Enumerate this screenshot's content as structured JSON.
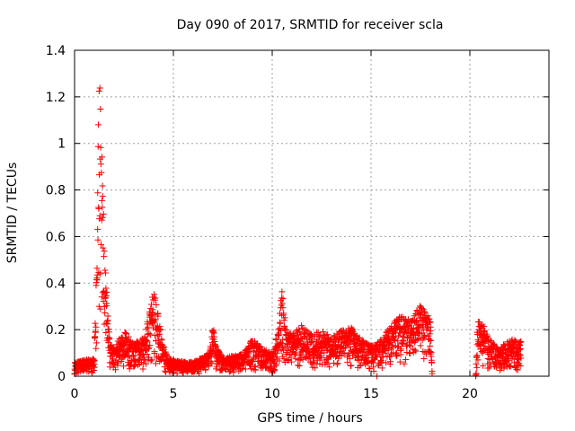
{
  "chart_data": {
    "type": "scatter",
    "title": "Day 090 of 2017, SRMTID for receiver scla",
    "xlabel": "GPS time / hours",
    "ylabel": "SRMTID / TECUs",
    "xlim": [
      0,
      24
    ],
    "ylim": [
      0,
      1.4
    ],
    "xticks": [
      0,
      5,
      10,
      15,
      20
    ],
    "xtick_labels": [
      "0",
      "5",
      "10",
      "15",
      "20"
    ],
    "yticks": [
      0,
      0.2,
      0.4,
      0.6,
      0.8,
      1.0,
      1.2,
      1.4
    ],
    "ytick_labels": [
      "0",
      "0.2",
      "0.4",
      "0.6",
      "0.8",
      "1",
      "1.2",
      "1.4"
    ],
    "grid": true,
    "marker": "plus",
    "color": "#ff0000",
    "series": [
      {
        "name": "SRMTID",
        "description_of_envelope": "approximate upper envelope of scattered points (hour, TECU)",
        "envelope": [
          [
            0.0,
            0.06
          ],
          [
            0.5,
            0.07
          ],
          [
            1.0,
            0.08
          ],
          [
            1.15,
            0.6
          ],
          [
            1.2,
            1.3
          ],
          [
            1.3,
            1.25
          ],
          [
            1.4,
            0.9
          ],
          [
            1.5,
            0.57
          ],
          [
            1.6,
            0.4
          ],
          [
            1.7,
            0.3
          ],
          [
            1.8,
            0.15
          ],
          [
            2.0,
            0.12
          ],
          [
            2.5,
            0.2
          ],
          [
            3.0,
            0.14
          ],
          [
            3.5,
            0.17
          ],
          [
            4.0,
            0.37
          ],
          [
            4.2,
            0.3
          ],
          [
            4.4,
            0.18
          ],
          [
            4.7,
            0.08
          ],
          [
            5.0,
            0.07
          ],
          [
            6.0,
            0.06
          ],
          [
            6.8,
            0.1
          ],
          [
            7.0,
            0.22
          ],
          [
            7.2,
            0.12
          ],
          [
            7.5,
            0.08
          ],
          [
            8.5,
            0.1
          ],
          [
            9.0,
            0.16
          ],
          [
            9.5,
            0.12
          ],
          [
            10.0,
            0.1
          ],
          [
            10.3,
            0.2
          ],
          [
            10.5,
            0.38
          ],
          [
            10.7,
            0.2
          ],
          [
            11.0,
            0.18
          ],
          [
            11.5,
            0.22
          ],
          [
            12.0,
            0.18
          ],
          [
            12.5,
            0.2
          ],
          [
            13.0,
            0.17
          ],
          [
            13.5,
            0.2
          ],
          [
            14.0,
            0.21
          ],
          [
            14.5,
            0.16
          ],
          [
            15.0,
            0.13
          ],
          [
            15.5,
            0.16
          ],
          [
            16.0,
            0.22
          ],
          [
            16.5,
            0.26
          ],
          [
            17.0,
            0.24
          ],
          [
            17.5,
            0.31
          ],
          [
            18.0,
            0.25
          ],
          [
            18.1,
            0.0
          ],
          [
            20.3,
            0.0
          ],
          [
            20.4,
            0.27
          ],
          [
            20.7,
            0.22
          ],
          [
            21.0,
            0.16
          ],
          [
            21.5,
            0.12
          ],
          [
            22.0,
            0.16
          ],
          [
            22.6,
            0.15
          ]
        ]
      }
    ],
    "data_gaps_hours": [
      [
        18.1,
        20.3
      ]
    ]
  }
}
